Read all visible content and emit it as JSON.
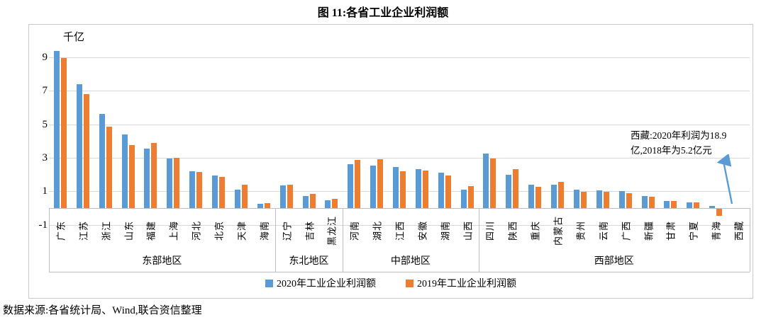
{
  "figure": {
    "title": "图 11:各省工业企业利润额",
    "source": "数据来源:各省统计局、Wind,联合资信整理"
  },
  "chart_data": {
    "type": "bar",
    "title": "图 11:各省工业企业利润额",
    "unit_label": "千亿",
    "ylabel": "千亿",
    "xlabel": "",
    "ylim": [
      -1.35,
      10
    ],
    "y_ticks": [
      9,
      7,
      5,
      3,
      1,
      -1
    ],
    "grid": true,
    "legend_position": "bottom",
    "series_meta": [
      {
        "name": "2020年工业企业利润额",
        "color": "#5B9BD5",
        "key": "v2020"
      },
      {
        "name": "2019年工业企业利润额",
        "color": "#ED7D31",
        "key": "v2019"
      }
    ],
    "groups": [
      {
        "region": "东部地区",
        "provinces": [
          {
            "name": "广东",
            "v2020": 9.35,
            "v2019": 8.95
          },
          {
            "name": "江苏",
            "v2020": 7.4,
            "v2019": 6.8
          },
          {
            "name": "浙江",
            "v2020": 5.6,
            "v2019": 4.85
          },
          {
            "name": "山东",
            "v2020": 4.4,
            "v2019": 3.75
          },
          {
            "name": "福建",
            "v2020": 3.55,
            "v2019": 3.9
          },
          {
            "name": "上海",
            "v2020": 2.95,
            "v2019": 3.0
          },
          {
            "name": "河北",
            "v2020": 2.2,
            "v2019": 2.15
          },
          {
            "name": "北京",
            "v2020": 1.95,
            "v2019": 1.85
          },
          {
            "name": "天津",
            "v2020": 1.1,
            "v2019": 1.4
          },
          {
            "name": "海南",
            "v2020": 0.25,
            "v2019": 0.3
          }
        ]
      },
      {
        "region": "东北地区",
        "provinces": [
          {
            "name": "辽宁",
            "v2020": 1.35,
            "v2019": 1.4
          },
          {
            "name": "吉林",
            "v2020": 0.7,
            "v2019": 0.85
          },
          {
            "name": "黑龙江",
            "v2020": 0.45,
            "v2019": 0.55
          }
        ]
      },
      {
        "region": "中部地区",
        "provinces": [
          {
            "name": "河南",
            "v2020": 2.6,
            "v2019": 2.85
          },
          {
            "name": "湖北",
            "v2020": 2.55,
            "v2019": 2.9
          },
          {
            "name": "江西",
            "v2020": 2.45,
            "v2019": 2.2
          },
          {
            "name": "安徽",
            "v2020": 2.3,
            "v2019": 2.25
          },
          {
            "name": "湖南",
            "v2020": 2.1,
            "v2019": 1.95
          },
          {
            "name": "山西",
            "v2020": 1.1,
            "v2019": 1.3
          }
        ]
      },
      {
        "region": "西部地区",
        "provinces": [
          {
            "name": "四川",
            "v2020": 3.25,
            "v2019": 2.95
          },
          {
            "name": "陕西",
            "v2020": 2.0,
            "v2019": 2.3
          },
          {
            "name": "重庆",
            "v2020": 1.4,
            "v2019": 1.25
          },
          {
            "name": "内蒙古",
            "v2020": 1.4,
            "v2019": 1.55
          },
          {
            "name": "贵州",
            "v2020": 1.1,
            "v2019": 0.95
          },
          {
            "name": "云南",
            "v2020": 1.05,
            "v2019": 0.95
          },
          {
            "name": "广西",
            "v2020": 1.0,
            "v2019": 0.9
          },
          {
            "name": "新疆",
            "v2020": 0.73,
            "v2019": 0.68
          },
          {
            "name": "甘肃",
            "v2020": 0.44,
            "v2019": 0.42
          },
          {
            "name": "宁夏",
            "v2020": 0.35,
            "v2019": 0.33
          },
          {
            "name": "青海",
            "v2020": 0.12,
            "v2019": -0.42
          },
          {
            "name": "西藏",
            "v2020": 0.02,
            "v2019": 0.01
          }
        ]
      }
    ],
    "annotation": {
      "lines": [
        "西藏:2020年利润为18.9",
        "亿,2018年为5.2亿元"
      ],
      "arrow_color": "#5B9BD5"
    }
  }
}
